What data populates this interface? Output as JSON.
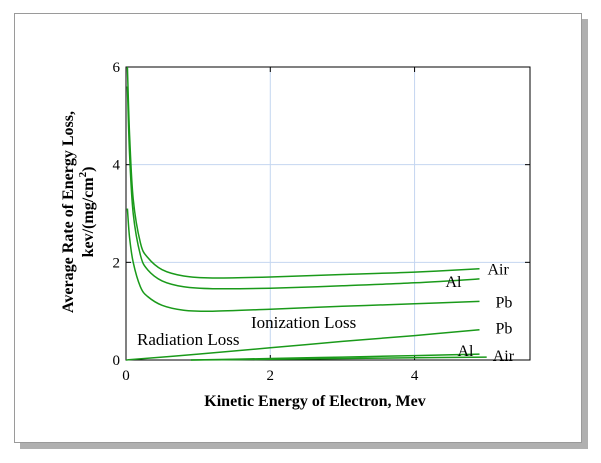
{
  "colors": {
    "curve": "#1a9a1a",
    "grid": "#c4d6f0",
    "axis": "#000000",
    "frame_shadow": "#b0b0b0"
  },
  "chart_data": {
    "type": "line",
    "title": "",
    "xlabel": "Kinetic Energy of Electron, Mev",
    "ylabel_line1": "Average Rate of Energy Loss,",
    "ylabel_line2_pre": "kev/(mg/cm",
    "ylabel_line2_sup": "2",
    "ylabel_line2_post": ")",
    "xlim": [
      0,
      5.6
    ],
    "ylim": [
      0,
      6
    ],
    "x_ticks": [
      "0",
      "2",
      "4"
    ],
    "y_ticks": [
      "0",
      "2",
      "4",
      "6"
    ],
    "grid": true,
    "region_labels": {
      "ionization": "Ionization Loss",
      "radiation": "Radiation Loss"
    },
    "series": [
      {
        "name": "Air",
        "group": "ionization",
        "points": [
          [
            0.02,
            6.0
          ],
          [
            0.05,
            4.6
          ],
          [
            0.1,
            3.3
          ],
          [
            0.2,
            2.4
          ],
          [
            0.3,
            2.1
          ],
          [
            0.5,
            1.85
          ],
          [
            0.8,
            1.72
          ],
          [
            1.2,
            1.68
          ],
          [
            2.0,
            1.7
          ],
          [
            3.0,
            1.75
          ],
          [
            4.0,
            1.8
          ],
          [
            4.9,
            1.87
          ]
        ]
      },
      {
        "name": "Al",
        "group": "ionization",
        "points": [
          [
            0.02,
            5.6
          ],
          [
            0.05,
            4.2
          ],
          [
            0.1,
            3.0
          ],
          [
            0.2,
            2.15
          ],
          [
            0.3,
            1.85
          ],
          [
            0.5,
            1.62
          ],
          [
            0.8,
            1.5
          ],
          [
            1.2,
            1.46
          ],
          [
            2.0,
            1.47
          ],
          [
            3.0,
            1.52
          ],
          [
            4.0,
            1.58
          ],
          [
            4.9,
            1.66
          ]
        ]
      },
      {
        "name": "Pb",
        "group": "ionization",
        "points": [
          [
            0.02,
            3.1
          ],
          [
            0.05,
            2.5
          ],
          [
            0.1,
            2.0
          ],
          [
            0.2,
            1.5
          ],
          [
            0.3,
            1.3
          ],
          [
            0.5,
            1.12
          ],
          [
            0.8,
            1.02
          ],
          [
            1.2,
            1.0
          ],
          [
            2.0,
            1.04
          ],
          [
            3.0,
            1.1
          ],
          [
            4.0,
            1.15
          ],
          [
            4.9,
            1.2
          ]
        ]
      },
      {
        "name": "Pb",
        "group": "radiation",
        "points": [
          [
            0.0,
            0.0
          ],
          [
            1.0,
            0.12
          ],
          [
            2.0,
            0.25
          ],
          [
            3.0,
            0.38
          ],
          [
            4.0,
            0.5
          ],
          [
            4.9,
            0.62
          ]
        ]
      },
      {
        "name": "Al",
        "group": "radiation",
        "points": [
          [
            0.9,
            0.0
          ],
          [
            2.0,
            0.03
          ],
          [
            3.0,
            0.06
          ],
          [
            4.0,
            0.09
          ],
          [
            4.9,
            0.12
          ]
        ]
      },
      {
        "name": "Air",
        "group": "radiation",
        "points": [
          [
            0.9,
            0.0
          ],
          [
            2.0,
            0.015
          ],
          [
            3.0,
            0.03
          ],
          [
            4.0,
            0.045
          ],
          [
            5.0,
            0.06
          ]
        ]
      }
    ]
  }
}
